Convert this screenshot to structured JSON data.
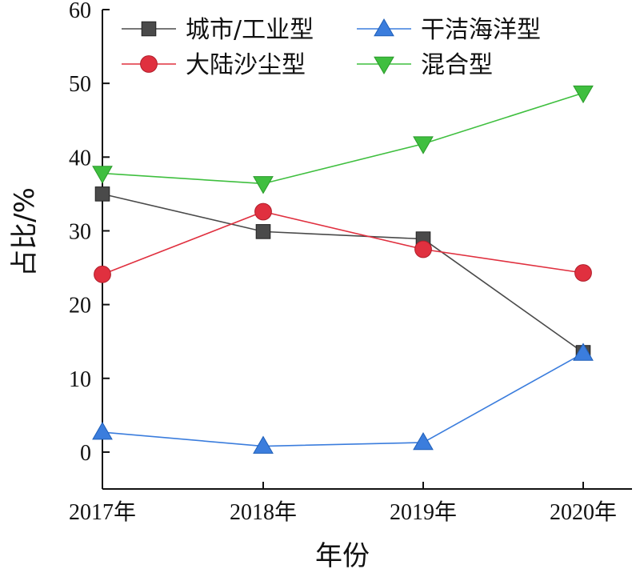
{
  "chart_data": {
    "type": "line",
    "title": "",
    "xlabel": "年份",
    "ylabel": "占比/%",
    "categories": [
      "2017年",
      "2018年",
      "2019年",
      "2020年"
    ],
    "ylim": [
      -5,
      60
    ],
    "yticks": [
      0,
      10,
      20,
      30,
      40,
      50,
      60
    ],
    "grid": false,
    "legend_position": "top",
    "series": [
      {
        "name": "城市/工业型",
        "values": [
          35.0,
          29.9,
          28.9,
          13.5
        ],
        "color": "#4a4a4a",
        "marker": "square"
      },
      {
        "name": "干洁海洋型",
        "values": [
          2.7,
          0.8,
          1.3,
          13.4
        ],
        "color": "#3b7ddd",
        "marker": "triangle-up"
      },
      {
        "name": "大陆沙尘型",
        "values": [
          24.1,
          32.6,
          27.5,
          24.3
        ],
        "color": "#e0303f",
        "marker": "circle"
      },
      {
        "name": "混合型",
        "values": [
          37.8,
          36.4,
          41.8,
          48.7
        ],
        "color": "#3fbf3f",
        "marker": "triangle-down"
      }
    ]
  }
}
